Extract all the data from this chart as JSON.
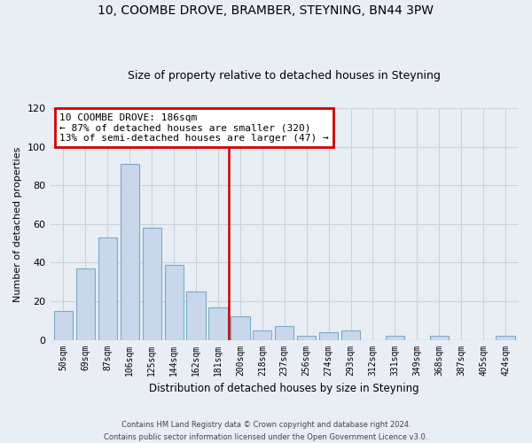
{
  "title": "10, COOMBE DROVE, BRAMBER, STEYNING, BN44 3PW",
  "subtitle": "Size of property relative to detached houses in Steyning",
  "xlabel": "Distribution of detached houses by size in Steyning",
  "ylabel": "Number of detached properties",
  "bar_labels": [
    "50sqm",
    "69sqm",
    "87sqm",
    "106sqm",
    "125sqm",
    "144sqm",
    "162sqm",
    "181sqm",
    "200sqm",
    "218sqm",
    "237sqm",
    "256sqm",
    "274sqm",
    "293sqm",
    "312sqm",
    "331sqm",
    "349sqm",
    "368sqm",
    "387sqm",
    "405sqm",
    "424sqm"
  ],
  "bar_values": [
    15,
    37,
    53,
    91,
    58,
    39,
    25,
    17,
    12,
    5,
    7,
    2,
    4,
    5,
    0,
    2,
    0,
    2,
    0,
    0,
    2
  ],
  "bar_color": "#c8d8ea",
  "bar_edge_color": "#7aaac8",
  "vline_x": 7.5,
  "vline_color": "#cc0000",
  "annotation_title": "10 COOMBE DROVE: 186sqm",
  "annotation_line1": "← 87% of detached houses are smaller (320)",
  "annotation_line2": "13% of semi-detached houses are larger (47) →",
  "annotation_box_color": "#ffffff",
  "annotation_box_edge": "#cc0000",
  "ylim": [
    0,
    120
  ],
  "yticks": [
    0,
    20,
    40,
    60,
    80,
    100,
    120
  ],
  "footer_line1": "Contains HM Land Registry data © Crown copyright and database right 2024.",
  "footer_line2": "Contains public sector information licensed under the Open Government Licence v3.0.",
  "bg_color": "#e8eef4",
  "grid_color": "#d0d8e0",
  "title_fontsize": 10,
  "subtitle_fontsize": 9
}
